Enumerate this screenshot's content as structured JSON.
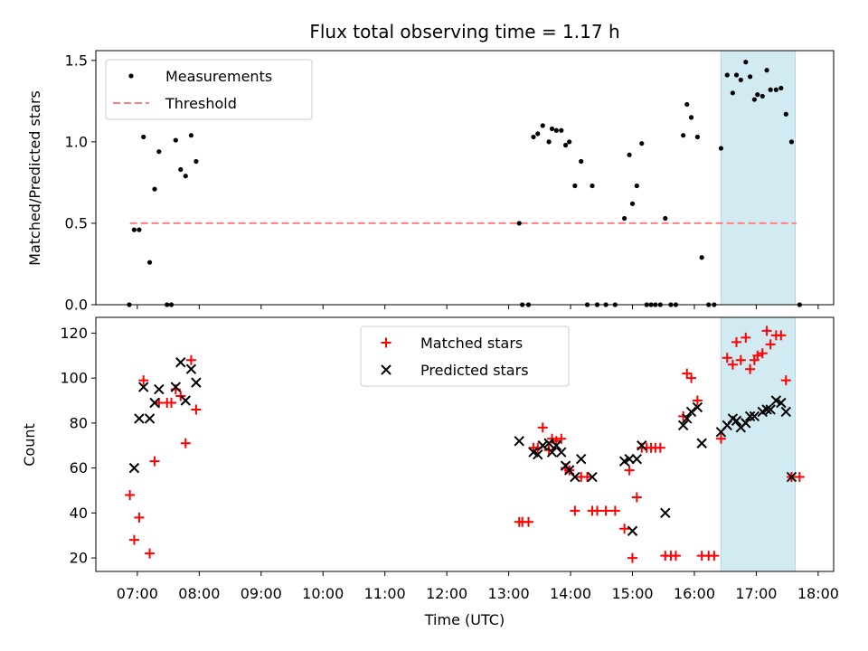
{
  "chart_data": {
    "title": "Flux total observing time = 1.17 h",
    "xlabel": "Time (UTC)",
    "x_ticks": [
      "07:00",
      "08:00",
      "09:00",
      "10:00",
      "11:00",
      "12:00",
      "13:00",
      "14:00",
      "15:00",
      "16:00",
      "17:00",
      "18:00"
    ],
    "x_tick_hours": [
      7,
      8,
      9,
      10,
      11,
      12,
      13,
      14,
      15,
      16,
      17,
      18
    ],
    "xlim": [
      6.33,
      18.25
    ],
    "highlight_span": [
      16.43,
      17.63
    ],
    "highlight_color": "#add8e6",
    "top": {
      "type": "scatter",
      "ylabel": "Matched/Predicted stars",
      "ylim": [
        0,
        1.56
      ],
      "y_ticks": [
        0,
        0.5,
        1.0,
        1.5
      ],
      "y_tick_labels": [
        "0.0",
        "0.5",
        "1.0",
        "1.5"
      ],
      "threshold": {
        "value": 0.5,
        "x_range": [
          6.88,
          17.65
        ],
        "color": "#ff8080"
      },
      "legend": {
        "position": "top-left",
        "entries": [
          {
            "label": "Measurements",
            "marker": "dot",
            "color": "#000000"
          },
          {
            "label": "Threshold",
            "marker": "dashed-line",
            "color": "#ff8080"
          }
        ]
      },
      "series": [
        {
          "name": "Measurements",
          "color": "#000000",
          "points": [
            [
              6.87,
              0.0
            ],
            [
              6.95,
              0.46
            ],
            [
              7.03,
              0.46
            ],
            [
              7.1,
              1.03
            ],
            [
              7.2,
              0.26
            ],
            [
              7.28,
              0.71
            ],
            [
              7.35,
              0.94
            ],
            [
              7.48,
              0.0
            ],
            [
              7.55,
              0.0
            ],
            [
              7.62,
              1.01
            ],
            [
              7.7,
              0.83
            ],
            [
              7.78,
              0.79
            ],
            [
              7.87,
              1.04
            ],
            [
              7.95,
              0.88
            ],
            [
              13.17,
              0.5
            ],
            [
              13.22,
              0.0
            ],
            [
              13.32,
              0.0
            ],
            [
              13.4,
              1.03
            ],
            [
              13.47,
              1.05
            ],
            [
              13.55,
              1.1
            ],
            [
              13.65,
              1.0
            ],
            [
              13.7,
              1.08
            ],
            [
              13.77,
              1.07
            ],
            [
              13.85,
              1.07
            ],
            [
              13.92,
              0.98
            ],
            [
              13.98,
              1.0
            ],
            [
              14.07,
              0.73
            ],
            [
              14.17,
              0.88
            ],
            [
              14.27,
              0.0
            ],
            [
              14.35,
              0.73
            ],
            [
              14.43,
              0.0
            ],
            [
              14.57,
              0.0
            ],
            [
              14.72,
              0.0
            ],
            [
              14.87,
              0.53
            ],
            [
              14.95,
              0.92
            ],
            [
              15.0,
              0.62
            ],
            [
              15.07,
              0.73
            ],
            [
              15.15,
              0.99
            ],
            [
              15.23,
              0.0
            ],
            [
              15.3,
              0.0
            ],
            [
              15.37,
              0.0
            ],
            [
              15.45,
              0.0
            ],
            [
              15.53,
              0.53
            ],
            [
              15.62,
              0.0
            ],
            [
              15.7,
              0.0
            ],
            [
              15.82,
              1.04
            ],
            [
              15.88,
              1.23
            ],
            [
              15.95,
              1.15
            ],
            [
              16.05,
              1.03
            ],
            [
              16.12,
              0.29
            ],
            [
              16.23,
              0.0
            ],
            [
              16.32,
              0.0
            ],
            [
              16.43,
              0.96
            ],
            [
              16.53,
              1.41
            ],
            [
              16.62,
              1.3
            ],
            [
              16.68,
              1.41
            ],
            [
              16.75,
              1.38
            ],
            [
              16.83,
              1.49
            ],
            [
              16.9,
              1.4
            ],
            [
              16.97,
              1.26
            ],
            [
              17.02,
              1.29
            ],
            [
              17.1,
              1.28
            ],
            [
              17.17,
              1.44
            ],
            [
              17.23,
              1.32
            ],
            [
              17.32,
              1.32
            ],
            [
              17.4,
              1.33
            ],
            [
              17.48,
              1.17
            ],
            [
              17.57,
              1.0
            ],
            [
              17.7,
              0.0
            ]
          ]
        }
      ]
    },
    "bottom": {
      "type": "scatter",
      "ylabel": "Count",
      "ylim": [
        14,
        127
      ],
      "y_ticks": [
        20,
        40,
        60,
        80,
        100,
        120
      ],
      "y_tick_labels": [
        "20",
        "40",
        "60",
        "80",
        "100",
        "120"
      ],
      "legend": {
        "position": "top-center",
        "entries": [
          {
            "label": "Matched stars",
            "marker": "plus",
            "color": "#ff0000"
          },
          {
            "label": "Predicted stars",
            "marker": "x",
            "color": "#000000"
          }
        ]
      },
      "series": [
        {
          "name": "Matched stars",
          "marker": "plus",
          "color": "#ff0000",
          "points": [
            [
              6.88,
              48
            ],
            [
              6.95,
              28
            ],
            [
              7.03,
              38
            ],
            [
              7.1,
              99
            ],
            [
              7.2,
              22
            ],
            [
              7.28,
              63
            ],
            [
              7.35,
              89
            ],
            [
              7.48,
              89
            ],
            [
              7.55,
              89
            ],
            [
              7.62,
              95
            ],
            [
              7.7,
              92
            ],
            [
              7.78,
              71
            ],
            [
              7.87,
              108
            ],
            [
              7.95,
              86
            ],
            [
              13.17,
              36
            ],
            [
              13.22,
              36
            ],
            [
              13.32,
              36
            ],
            [
              13.4,
              69
            ],
            [
              13.47,
              69
            ],
            [
              13.55,
              78
            ],
            [
              13.65,
              68
            ],
            [
              13.7,
              73
            ],
            [
              13.77,
              72
            ],
            [
              13.85,
              73
            ],
            [
              13.92,
              60
            ],
            [
              13.98,
              59
            ],
            [
              14.07,
              41
            ],
            [
              14.17,
              56
            ],
            [
              14.27,
              56
            ],
            [
              14.35,
              41
            ],
            [
              14.43,
              41
            ],
            [
              14.57,
              41
            ],
            [
              14.72,
              41
            ],
            [
              14.87,
              33
            ],
            [
              14.95,
              59
            ],
            [
              15.0,
              20
            ],
            [
              15.07,
              47
            ],
            [
              15.15,
              69
            ],
            [
              15.23,
              69
            ],
            [
              15.3,
              69
            ],
            [
              15.37,
              69
            ],
            [
              15.45,
              69
            ],
            [
              15.53,
              21
            ],
            [
              15.62,
              21
            ],
            [
              15.7,
              21
            ],
            [
              15.82,
              83
            ],
            [
              15.88,
              102
            ],
            [
              15.95,
              100
            ],
            [
              16.05,
              90
            ],
            [
              16.12,
              21
            ],
            [
              16.23,
              21
            ],
            [
              16.32,
              21
            ],
            [
              16.43,
              73
            ],
            [
              16.53,
              109
            ],
            [
              16.62,
              106
            ],
            [
              16.68,
              116
            ],
            [
              16.75,
              108
            ],
            [
              16.83,
              118
            ],
            [
              16.9,
              104
            ],
            [
              16.97,
              108
            ],
            [
              17.02,
              110
            ],
            [
              17.1,
              111
            ],
            [
              17.17,
              121
            ],
            [
              17.23,
              115
            ],
            [
              17.32,
              119
            ],
            [
              17.4,
              119
            ],
            [
              17.48,
              99
            ],
            [
              17.57,
              56
            ],
            [
              17.7,
              56
            ]
          ]
        },
        {
          "name": "Predicted stars",
          "marker": "x",
          "color": "#000000",
          "points": [
            [
              6.95,
              60
            ],
            [
              7.03,
              82
            ],
            [
              7.1,
              96
            ],
            [
              7.2,
              82
            ],
            [
              7.28,
              89
            ],
            [
              7.35,
              95
            ],
            [
              7.62,
              96
            ],
            [
              7.7,
              107
            ],
            [
              7.78,
              90
            ],
            [
              7.87,
              104
            ],
            [
              7.95,
              98
            ],
            [
              13.17,
              72
            ],
            [
              13.4,
              67
            ],
            [
              13.47,
              66
            ],
            [
              13.55,
              70
            ],
            [
              13.65,
              71
            ],
            [
              13.7,
              67
            ],
            [
              13.77,
              70
            ],
            [
              13.85,
              67
            ],
            [
              13.92,
              61
            ],
            [
              13.98,
              59
            ],
            [
              14.07,
              56
            ],
            [
              14.17,
              64
            ],
            [
              14.35,
              56
            ],
            [
              14.87,
              63
            ],
            [
              14.95,
              64
            ],
            [
              15.0,
              32
            ],
            [
              15.07,
              64
            ],
            [
              15.15,
              70
            ],
            [
              15.53,
              40
            ],
            [
              15.82,
              79
            ],
            [
              15.88,
              82
            ],
            [
              15.95,
              85
            ],
            [
              16.05,
              87
            ],
            [
              16.12,
              71
            ],
            [
              16.43,
              76
            ],
            [
              16.53,
              79
            ],
            [
              16.62,
              82
            ],
            [
              16.68,
              81
            ],
            [
              16.75,
              78
            ],
            [
              16.83,
              80
            ],
            [
              16.9,
              83
            ],
            [
              16.97,
              83
            ],
            [
              17.1,
              85
            ],
            [
              17.17,
              86
            ],
            [
              17.23,
              86
            ],
            [
              17.32,
              90
            ],
            [
              17.4,
              89
            ],
            [
              17.48,
              85
            ],
            [
              17.57,
              56
            ]
          ]
        }
      ]
    }
  }
}
